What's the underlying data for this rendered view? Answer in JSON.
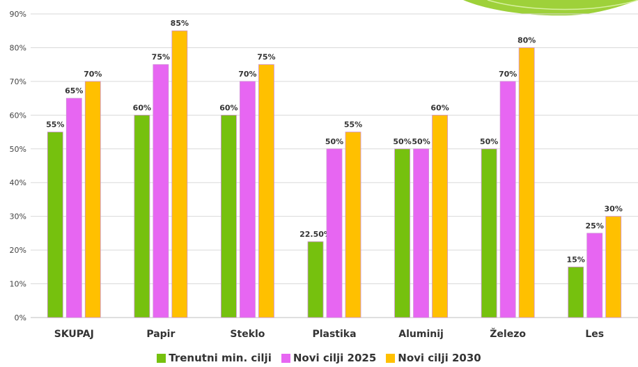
{
  "chart_data": {
    "type": "bar",
    "categories": [
      "SKUPAJ",
      "Papir",
      "Steklo",
      "Plastika",
      "Aluminij",
      "Železo",
      "Les"
    ],
    "series": [
      {
        "name": "Trenutni min. cilji",
        "color": "#76c10e",
        "values": [
          55,
          60,
          60,
          22.5,
          50,
          50,
          15
        ],
        "labels": [
          "55%",
          "60%",
          "60%",
          "22.50%",
          "50%",
          "50%",
          "15%"
        ]
      },
      {
        "name": "Novi cilji 2025",
        "color": "#e766f2",
        "values": [
          65,
          75,
          70,
          50,
          50,
          70,
          25
        ],
        "labels": [
          "65%",
          "75%",
          "70%",
          "50%",
          "50%",
          "70%",
          "25%"
        ]
      },
      {
        "name": "Novi cilji 2030",
        "color": "#ffc000",
        "values": [
          70,
          85,
          75,
          55,
          60,
          80,
          30
        ],
        "labels": [
          "70%",
          "85%",
          "75%",
          "55%",
          "60%",
          "80%",
          "30%"
        ]
      }
    ],
    "ylim": [
      0,
      90
    ],
    "yticks": [
      "0%",
      "10%",
      "20%",
      "30%",
      "40%",
      "50%",
      "60%",
      "70%",
      "80%",
      "90%"
    ],
    "grid": true,
    "legend_position": "bottom",
    "title": "",
    "xlabel": "",
    "ylabel": ""
  }
}
